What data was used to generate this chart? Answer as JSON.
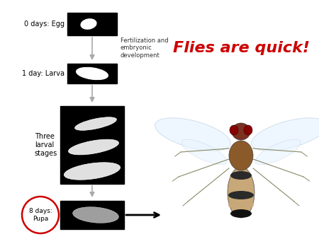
{
  "background_color": "#ffffff",
  "title_text": "Flies are quick!",
  "title_color": "#cc0000",
  "title_fontsize": 16,
  "title_fontstyle": "italic",
  "title_fontweight": "bold",
  "label_egg": "0 days: Egg",
  "label_larva": "1 day: Larva",
  "label_three_larval": "Three\nlarval\nstages",
  "label_pupa": "8 days:\nPupa",
  "label_fert": "Fertilization and\nembryonic\ndevelopment",
  "arrow_color": "#aaaaaa",
  "pupa_circle_color": "#cc0000",
  "figsize": [
    4.5,
    3.38
  ],
  "dpi": 100
}
